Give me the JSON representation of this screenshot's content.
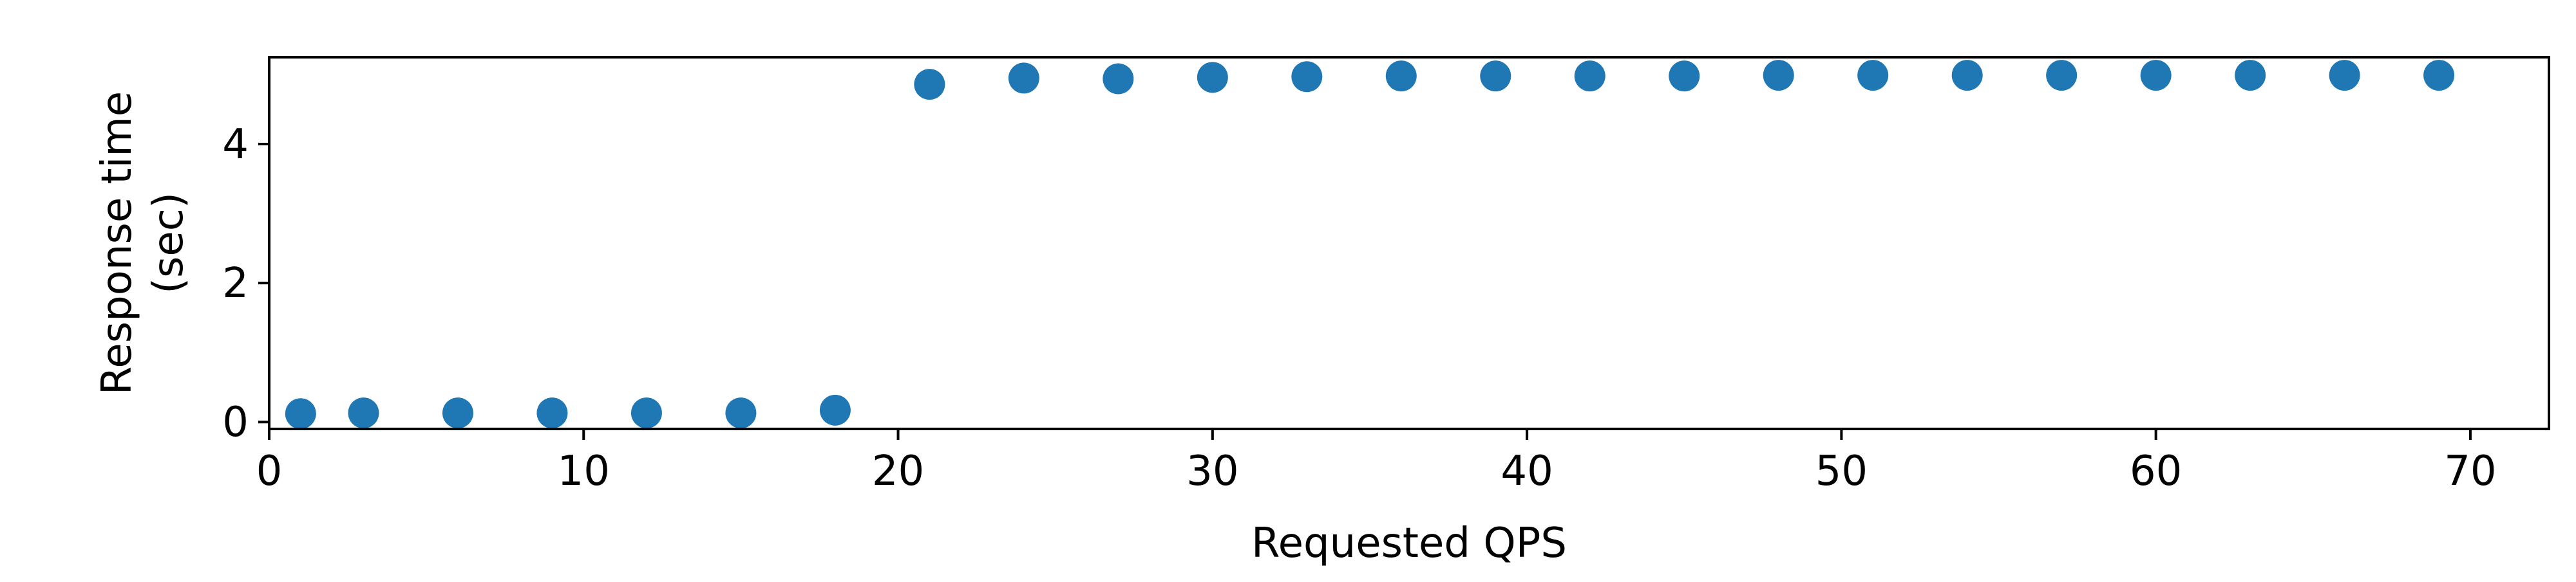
{
  "chart_data": {
    "type": "scatter",
    "title": "",
    "xlabel": "Requested QPS",
    "ylabel_lines": [
      "Response time",
      "(sec)"
    ],
    "xlim": [
      0,
      72.5
    ],
    "ylim": [
      -0.1,
      5.25
    ],
    "x_ticks": [
      0,
      10,
      20,
      30,
      40,
      50,
      60,
      70
    ],
    "y_ticks": [
      0,
      2,
      4
    ],
    "grid": false,
    "legend": "none",
    "marker_color": "#1f77b4",
    "series": [
      {
        "x": [
          1,
          3,
          6,
          9,
          12,
          15,
          18,
          21,
          24,
          27,
          30,
          33,
          36,
          39,
          42,
          45,
          48,
          51,
          54,
          57,
          60,
          63,
          66,
          69
        ],
        "y": [
          0.12,
          0.13,
          0.13,
          0.13,
          0.13,
          0.13,
          0.17,
          4.86,
          4.95,
          4.94,
          4.96,
          4.97,
          4.98,
          4.98,
          4.98,
          4.98,
          4.99,
          4.99,
          4.99,
          4.99,
          4.99,
          4.99,
          4.99,
          4.99
        ]
      }
    ]
  }
}
